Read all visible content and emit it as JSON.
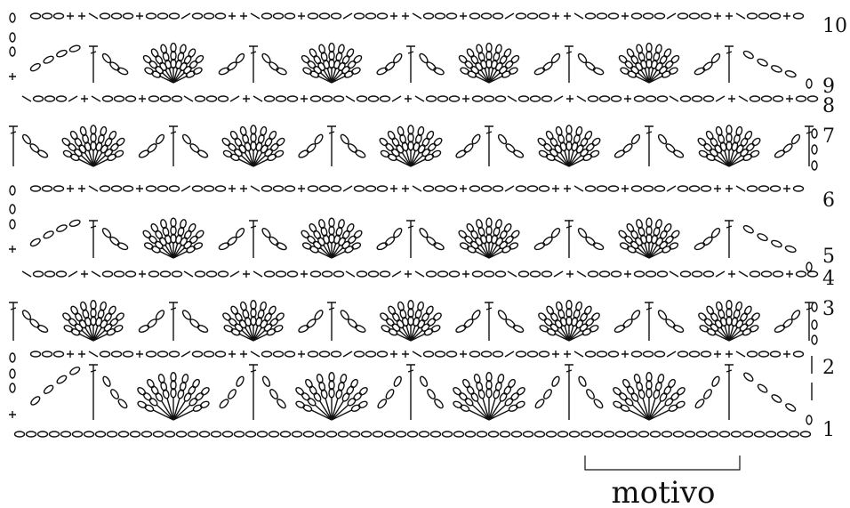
{
  "row_labels": [
    "1",
    "2",
    "3",
    "4",
    "5",
    "6",
    "7",
    "8",
    "9",
    "10"
  ],
  "motivo_label": "motivo",
  "colors": {
    "ink": "#111111",
    "background": "#ffffff"
  },
  "diagram": {
    "rows": 10,
    "repeats_fan_row": 4,
    "repeats_offset_row": 5
  }
}
